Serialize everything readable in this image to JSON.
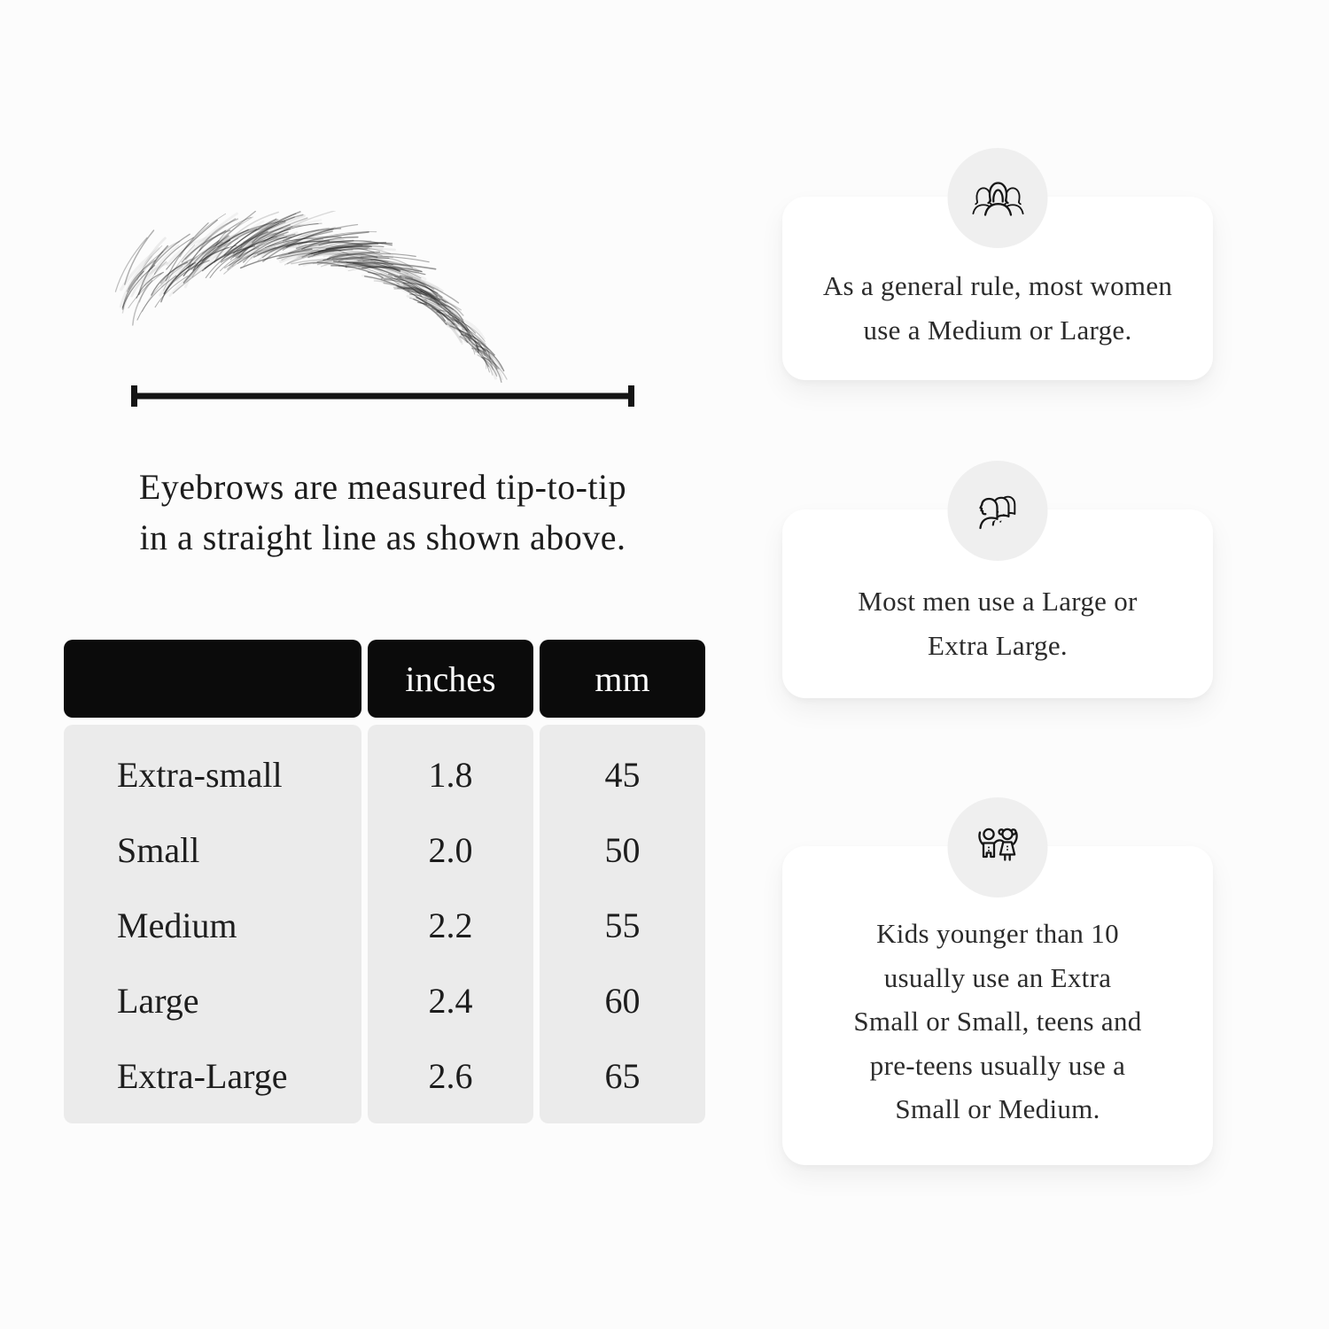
{
  "page": {
    "description": "Eyebrow sizing guide infographic",
    "background_color": "#fcfcfc"
  },
  "measurement": {
    "illustration_name": "hand-drawn-eyebrow-sketch",
    "line_name": "tip-to-tip-measurement-line",
    "caption": "Eyebrows are measured tip-to-tip\nin a straight line as shown above."
  },
  "size_table": {
    "columns": [
      "",
      "inches",
      "mm"
    ],
    "rows": [
      {
        "size": "Extra-small",
        "inches": "1.8",
        "mm": "45"
      },
      {
        "size": "Small",
        "inches": "2.0",
        "mm": "50"
      },
      {
        "size": "Medium",
        "inches": "2.2",
        "mm": "55"
      },
      {
        "size": "Large",
        "inches": "2.4",
        "mm": "60"
      },
      {
        "size": "Extra-Large",
        "inches": "2.6",
        "mm": "65"
      }
    ],
    "colors": {
      "header_bg": "#0b0b0b",
      "header_text": "#ffffff",
      "body_bg": "#ebebeb"
    }
  },
  "tips": [
    {
      "icon": "women-group-icon",
      "text": "As a general rule, most women\nuse a Medium or Large."
    },
    {
      "icon": "men-group-icon",
      "text": "Most men use a Large or\nExtra Large."
    },
    {
      "icon": "kids-icon",
      "text": "Kids younger than 10\nusually use an Extra\nSmall or Small, teens and\npre-teens usually use a\nSmall or Medium."
    }
  ]
}
